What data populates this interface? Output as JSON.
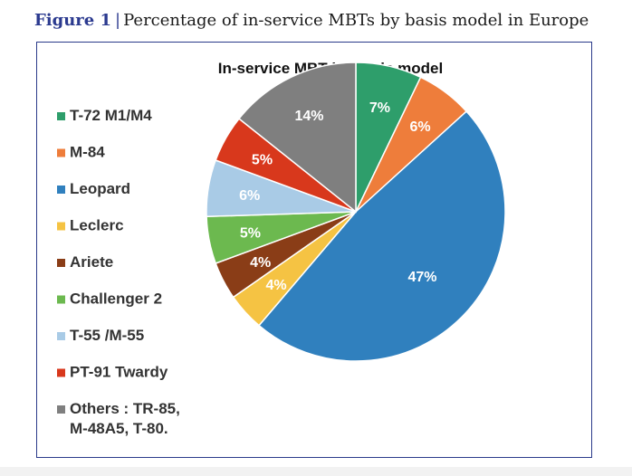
{
  "figure": {
    "label": "Figure 1",
    "separator": "|",
    "caption": "Percentage of in-service MBTs by basis model in Europe"
  },
  "chart_data": {
    "type": "pie",
    "title": "In-service MBT by basis model",
    "legend_position": "left",
    "slices": [
      {
        "label": "T-72 M1/M4",
        "value": 7,
        "value_label": "7%",
        "color": "#2e9e6b"
      },
      {
        "label": "M-84",
        "value": 6,
        "value_label": "6%",
        "color": "#ee7d3b"
      },
      {
        "label": "Leopard",
        "value": 47,
        "value_label": "47%",
        "color": "#3080be"
      },
      {
        "label": "Leclerc",
        "value": 4,
        "value_label": "4%",
        "color": "#f5c343"
      },
      {
        "label": "Ariete",
        "value": 4,
        "value_label": "4%",
        "color": "#8a3d17"
      },
      {
        "label": "Challenger 2",
        "value": 5,
        "value_label": "5%",
        "color": "#6cb94f"
      },
      {
        "label": "T-55 /M-55",
        "value": 6,
        "value_label": "6%",
        "color": "#a9cbe6"
      },
      {
        "label": "PT-91 Twardy",
        "value": 5,
        "value_label": "5%",
        "color": "#d8381c"
      },
      {
        "label": "Others : TR-85, M-48A5, T-80.",
        "label_lines": [
          "Others : TR-85,",
          "M-48A5, T-80."
        ],
        "value": 14,
        "value_label": "14%",
        "color": "#7f7f7f"
      }
    ]
  }
}
